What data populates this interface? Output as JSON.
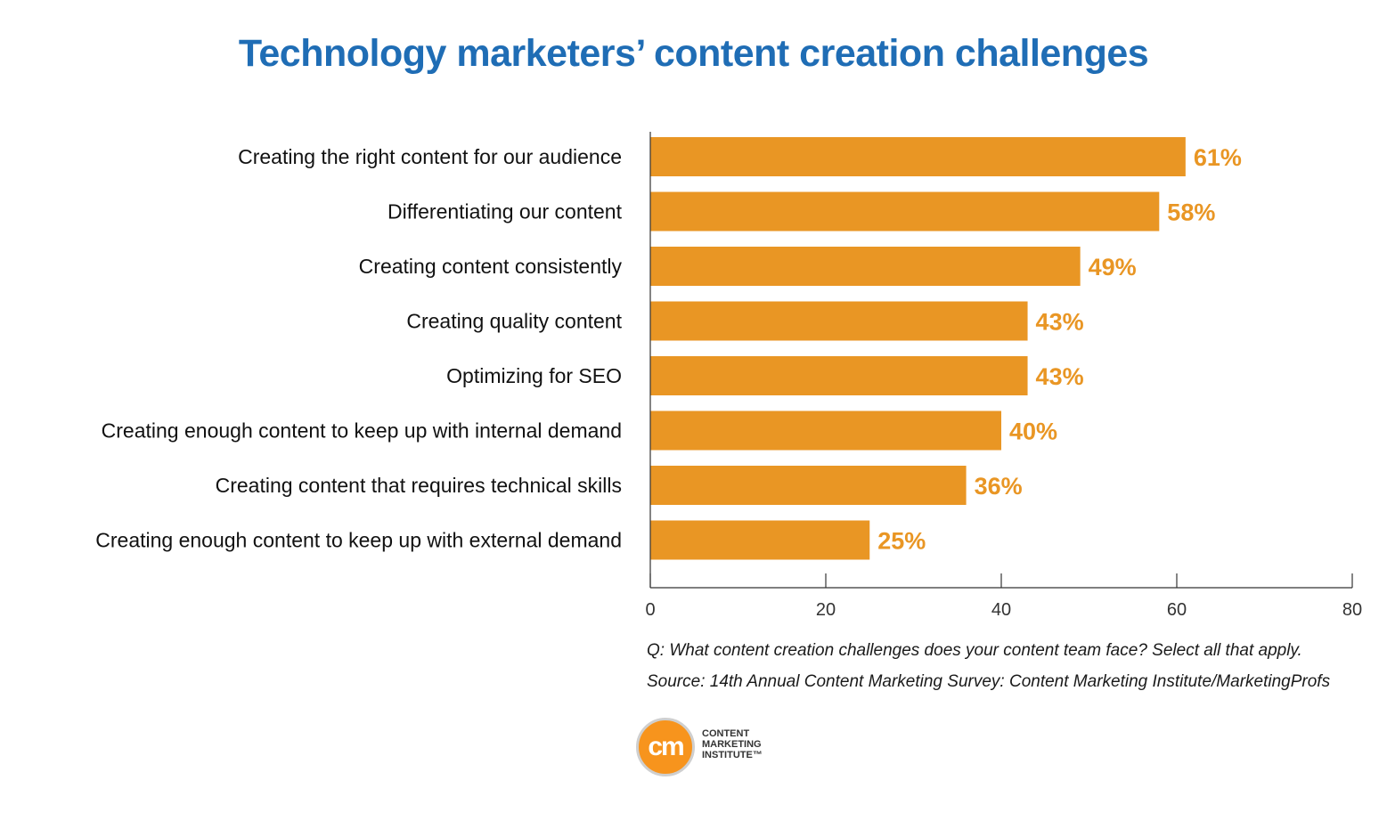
{
  "colors": {
    "title": "#1f6db5",
    "bar": "#e99624",
    "value_label": "#e99624",
    "axis": "#333333",
    "text": "#111111"
  },
  "chart_data": {
    "type": "bar",
    "orientation": "horizontal",
    "title": "Technology marketers’ content creation challenges",
    "categories": [
      "Creating the right content for our audience",
      "Differentiating our content",
      "Creating content consistently",
      "Creating quality content",
      "Optimizing for SEO",
      "Creating enough content to keep up with internal demand",
      "Creating content that requires technical skills",
      "Creating enough content to keep up with external demand"
    ],
    "values": [
      61,
      58,
      49,
      43,
      43,
      40,
      36,
      25
    ],
    "value_labels": [
      "61%",
      "58%",
      "49%",
      "43%",
      "43%",
      "40%",
      "36%",
      "25%"
    ],
    "xlim": [
      0,
      80
    ],
    "xticks": [
      0,
      20,
      40,
      60,
      80
    ],
    "grid": false,
    "legend": "none"
  },
  "footnotes": {
    "question": "Q: What content creation challenges does your content team face? Select all that apply.",
    "source": "Source: 14th Annual Content Marketing Survey: Content Marketing Institute/MarketingProfs"
  },
  "logo": {
    "mark": "cm",
    "line1": "CONTENT",
    "line2": "MARKETING",
    "line3": "INSTITUTE™"
  }
}
